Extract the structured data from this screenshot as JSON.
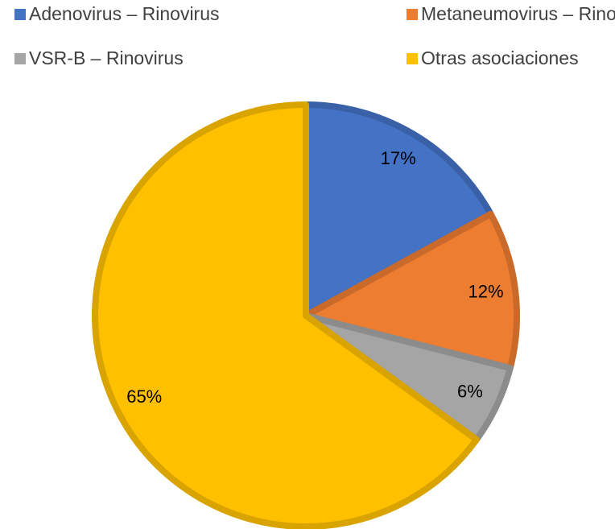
{
  "chart_data": {
    "type": "pie",
    "categories": [
      "Adenovirus – Rinovirus",
      "Metaneumovirus – Rinovirus",
      "VSR-B – Rinovirus",
      "Otras asociaciones"
    ],
    "values": [
      17,
      12,
      6,
      65
    ],
    "value_labels": [
      "17%",
      "12%",
      "6%",
      "65%"
    ],
    "colors": [
      "#4472c4",
      "#ed7d31",
      "#a5a5a5",
      "#ffc000"
    ],
    "legend": "top"
  }
}
